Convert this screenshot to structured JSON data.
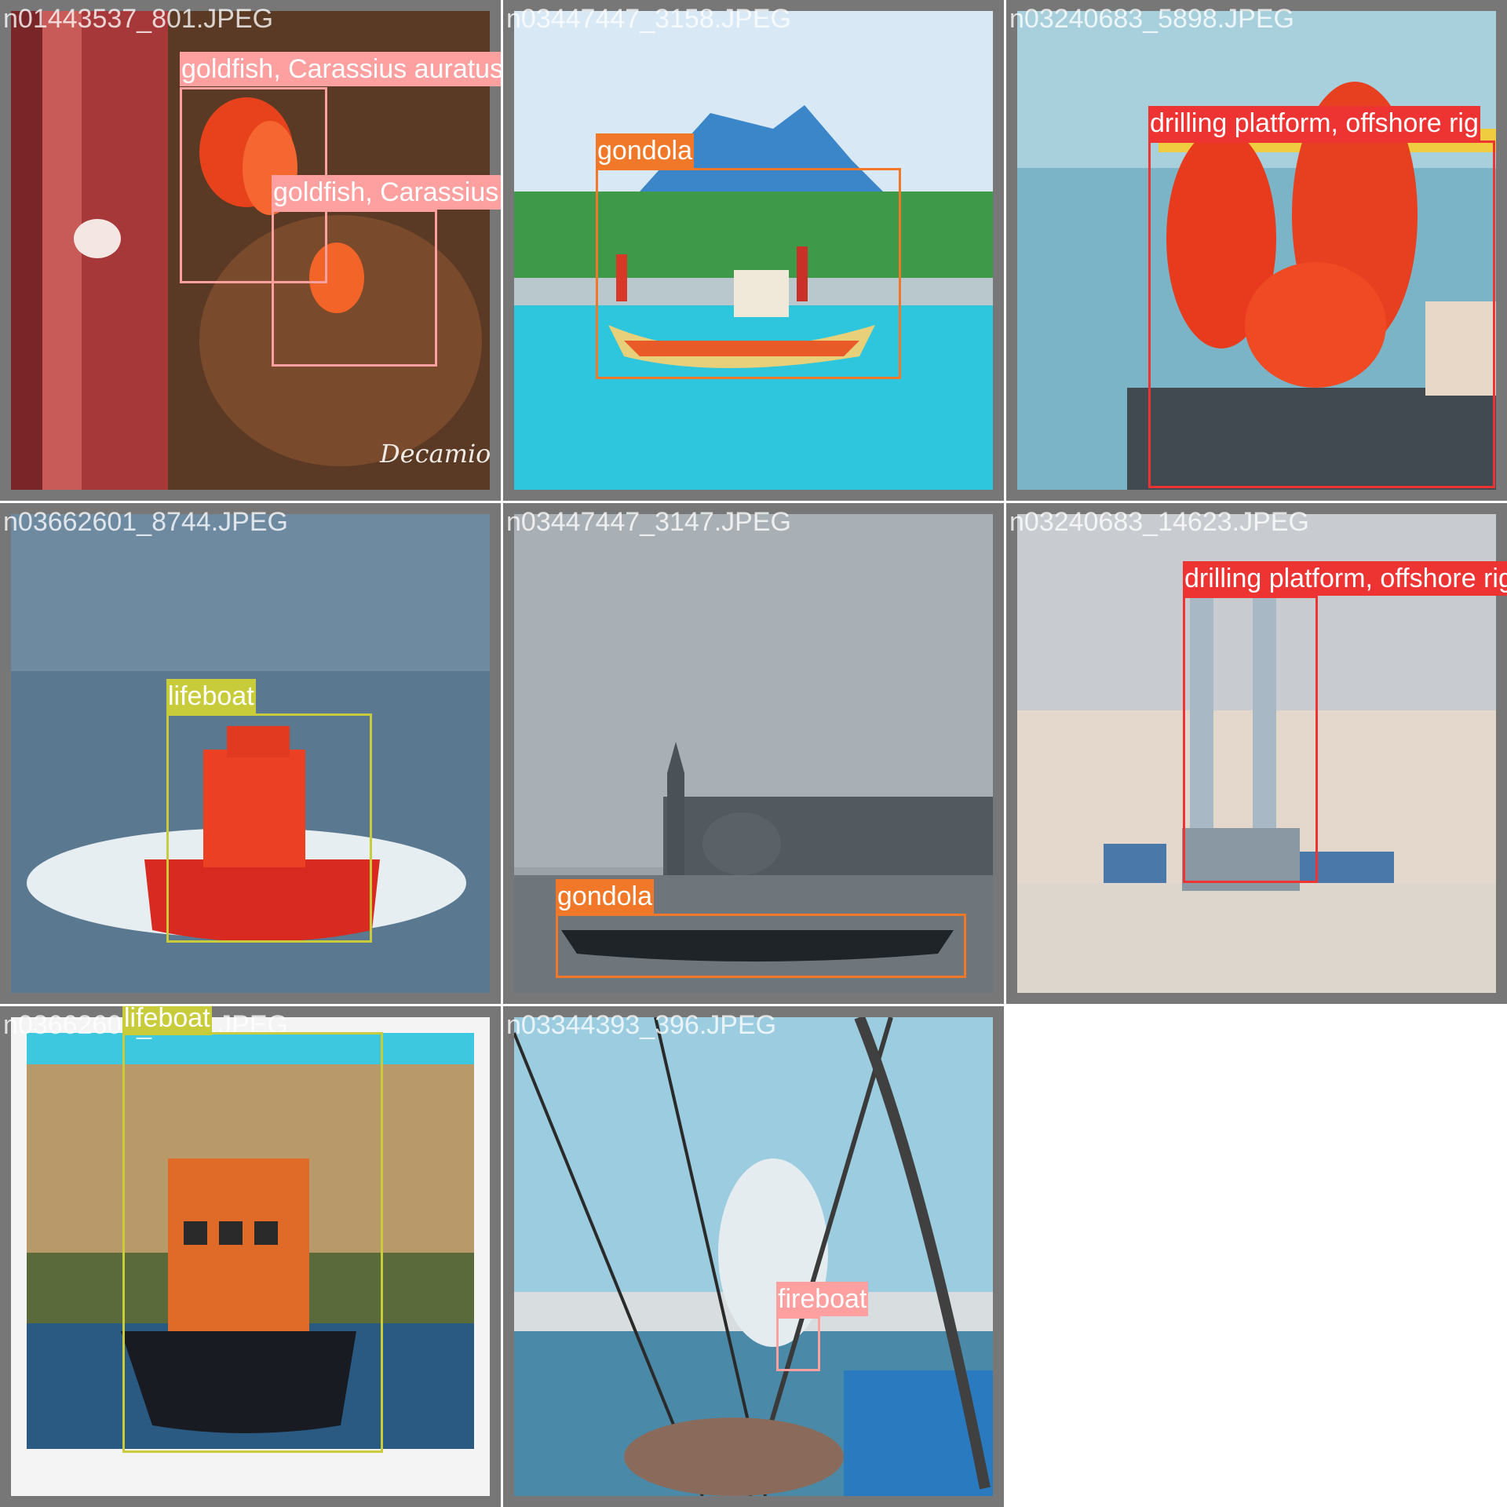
{
  "colors": {
    "goldfish": "#ffa0a0",
    "gondola": "#f07828",
    "drilling": "#ee3333",
    "lifeboat": "#c8cc3a",
    "fireboat": "#ffa0a0",
    "tile_frame": "#777777"
  },
  "tiles": [
    {
      "filename": "n01443537_801.JPEG",
      "labels": [
        "goldfish, Carassius auratus",
        "goldfish, Carassius auratus"
      ]
    },
    {
      "filename": "n03447447_3158.JPEG",
      "labels": [
        "gondola"
      ]
    },
    {
      "filename": "n03240683_5898.JPEG",
      "labels": [
        "drilling platform, offshore rig"
      ]
    },
    {
      "filename": "n03662601_8744.JPEG",
      "labels": [
        "lifeboat"
      ]
    },
    {
      "filename": "n03447447_3147.JPEG",
      "labels": [
        "gondola"
      ]
    },
    {
      "filename": "n03240683_14623.JPEG",
      "labels": [
        "drilling platform, offshore rig"
      ]
    },
    {
      "filename": "n03662601_8615.JPEG",
      "labels": [
        "lifeboat"
      ]
    },
    {
      "filename": "n03344393_396.JPEG",
      "labels": [
        "fireboat"
      ]
    }
  ],
  "photo_scene_names": {
    "t0": "goldfish-photo",
    "t1": "gondola-island-photo",
    "t2": "rig-workers-photo",
    "t3": "lifeboat-sea-photo",
    "t4": "venice-gondola-photo",
    "t5": "offshore-rig-photo",
    "t6": "lifeboat-cliff-photo",
    "t7": "fireboat-harbor-photo"
  }
}
